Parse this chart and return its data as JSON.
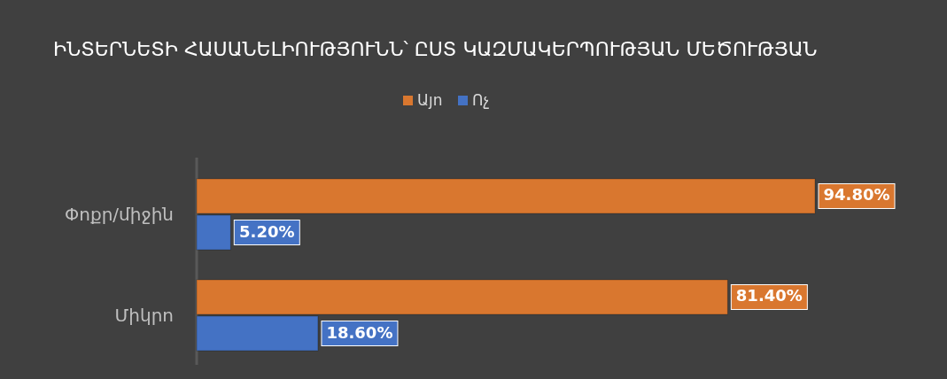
{
  "chart_data": {
    "type": "bar",
    "orientation": "horizontal",
    "title": "ԻՆՏԵՐՆԵՏԻ ՀԱՍԱՆԵԼԻՈՒԹՅՈՒՆՆ՝ ԸՍՏ ԿԱԶՄԱԿԵՐՊՈՒԹՅԱՆ ՄԵԾՈՒԹՅԱՆ",
    "categories": [
      "Փոքր/միջին",
      "Միկրո"
    ],
    "series": [
      {
        "name": "Այո",
        "color": "#d9772f",
        "values": [
          94.8,
          81.4
        ],
        "value_labels": [
          "94.80%",
          "81.40%"
        ]
      },
      {
        "name": "Ոչ",
        "color": "#4472c4",
        "values": [
          5.2,
          18.6
        ],
        "value_labels": [
          "5.20%",
          "18.60%"
        ]
      }
    ],
    "legend": "top"
  }
}
